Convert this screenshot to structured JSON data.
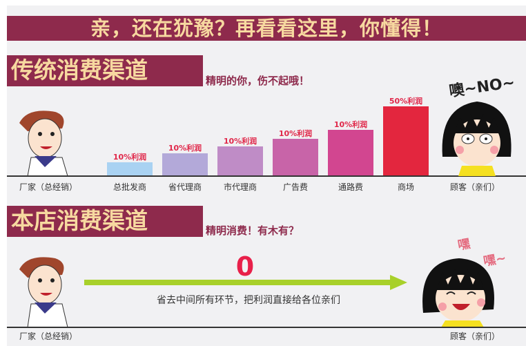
{
  "banner": {
    "title": "亲，还在犹豫？再看看这里，你懂得！"
  },
  "traditional": {
    "heading": "传统消费渠道",
    "subtitle": "精明的你，伤不起哦！",
    "customer_shout": "噢~NO~",
    "manufacturer_label": "厂家（总经销）",
    "customer_label": "顾客（亲们）",
    "channels": [
      {
        "label": "总批发商",
        "profit": "10%利润",
        "level": 0.2,
        "color": "#a9d2f2"
      },
      {
        "label": "省代理商",
        "profit": "10%利润",
        "level": 0.33,
        "color": "#b3a9d9"
      },
      {
        "label": "市代理商",
        "profit": "10%利润",
        "level": 0.43,
        "color": "#bf8cc6"
      },
      {
        "label": "广告费",
        "profit": "10%利润",
        "level": 0.53,
        "color": "#c864a8"
      },
      {
        "label": "通路费",
        "profit": "10%利润",
        "level": 0.66,
        "color": "#d24690"
      },
      {
        "label": "商场",
        "profit": "50%利润",
        "level": 1.0,
        "color": "#e3263e"
      }
    ]
  },
  "store": {
    "heading": "本店消费渠道",
    "subtitle": "精明消费！有木有？",
    "middle_cost": "0",
    "arrow_caption": "省去中间所有环节，把利润直接给各位亲们",
    "shout1": "嘿",
    "shout2": "嘿~",
    "manufacturer_label": "厂家（总经销）",
    "customer_label": "顾客（亲们）",
    "arrow_color": "#a8d02a"
  }
}
